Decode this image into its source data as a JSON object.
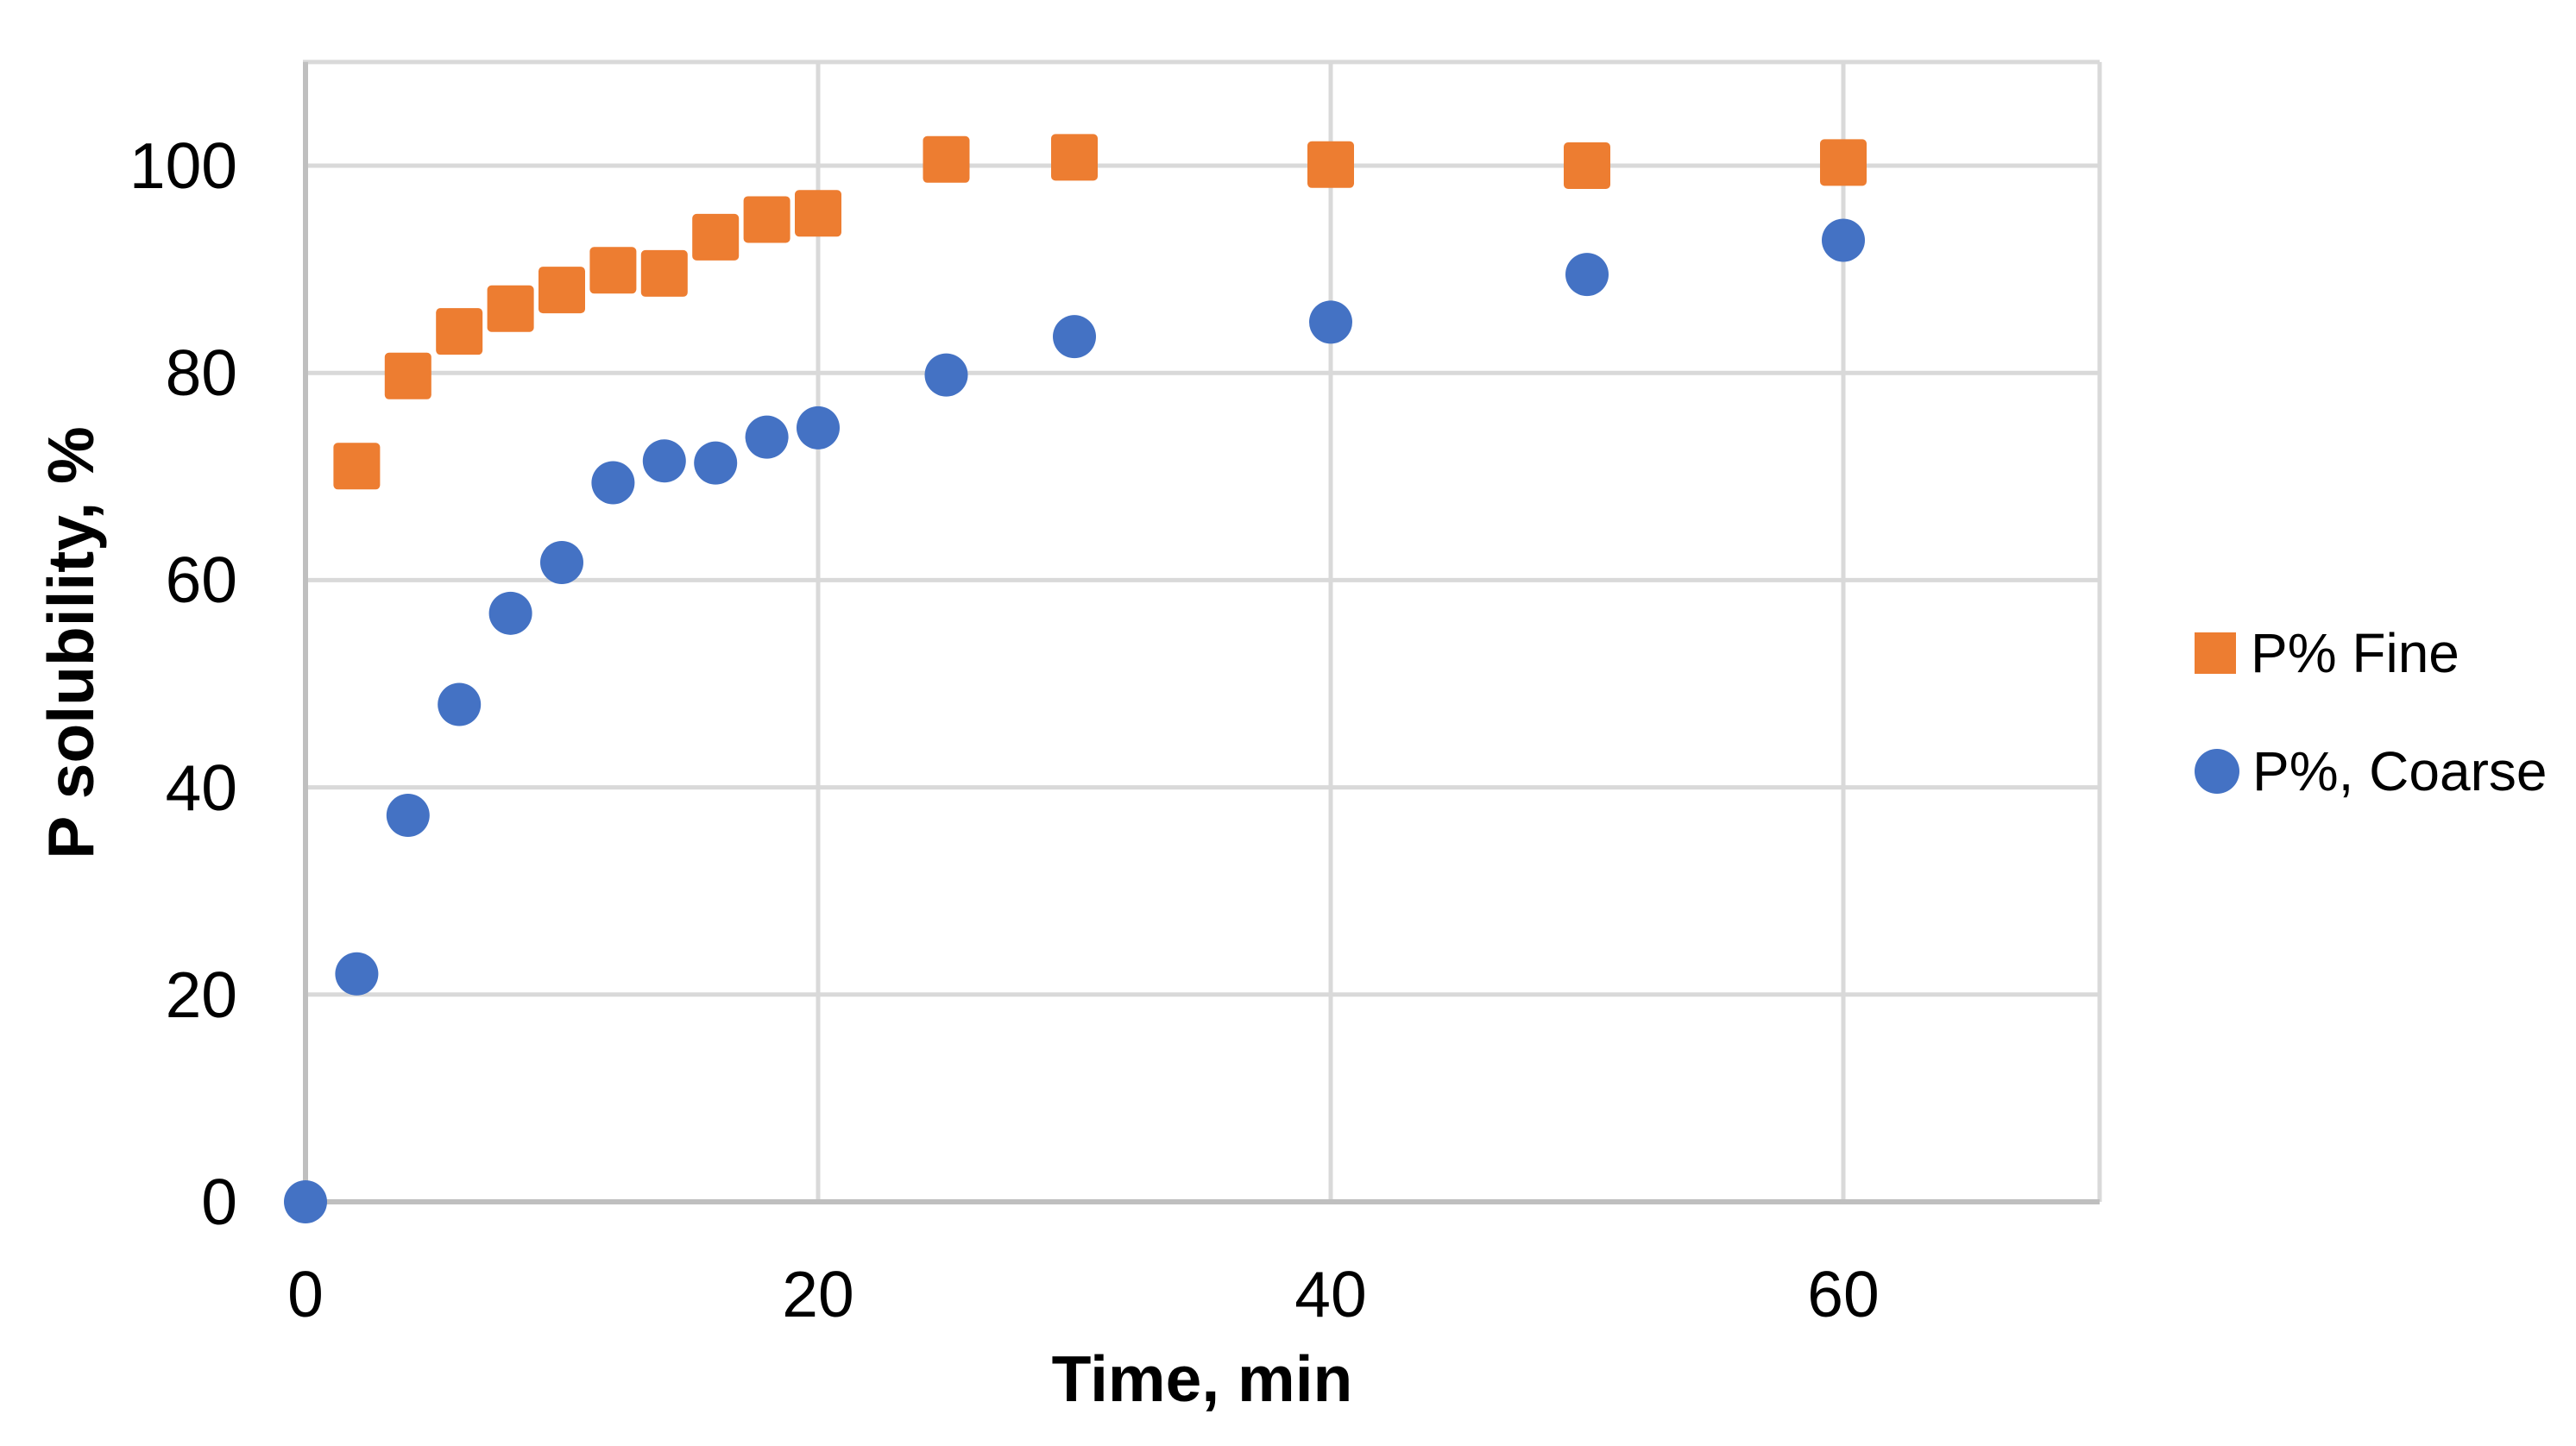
{
  "chart_data": {
    "type": "scatter",
    "title": "",
    "xlabel": "Time, min",
    "ylabel": "P solubility, %",
    "xlim": [
      0,
      70
    ],
    "ylim": [
      0,
      110
    ],
    "x_ticks": [
      0,
      20,
      40,
      60
    ],
    "y_ticks": [
      0,
      20,
      40,
      60,
      80,
      100
    ],
    "grid": true,
    "legend_position": "right-center",
    "series": [
      {
        "name": "P% Fine",
        "marker": "square",
        "color": "#ED7D31",
        "x": [
          2,
          4,
          6,
          8,
          10,
          12,
          14,
          16,
          18,
          20,
          25,
          30,
          40,
          50,
          60
        ],
        "y": [
          71,
          79.7,
          84,
          86.2,
          88,
          89.9,
          89.6,
          93.1,
          94.8,
          95.4,
          100.6,
          100.8,
          100.1,
          100,
          100.3
        ]
      },
      {
        "name": "P%, Coarse",
        "marker": "circle",
        "color": "#4472C4",
        "x": [
          0,
          2,
          4,
          6,
          8,
          10,
          12,
          14,
          16,
          18,
          20,
          25,
          30,
          40,
          50,
          60
        ],
        "y": [
          0,
          22,
          37.3,
          48,
          56.8,
          61.7,
          69.4,
          71.5,
          71.3,
          73.8,
          74.7,
          79.8,
          83.5,
          84.9,
          89.5,
          92.8
        ]
      }
    ]
  },
  "colors": {
    "gridline": "#D9D9D9",
    "axis_line": "#BFBFBF",
    "text": "#000000",
    "background": "#FFFFFF"
  }
}
